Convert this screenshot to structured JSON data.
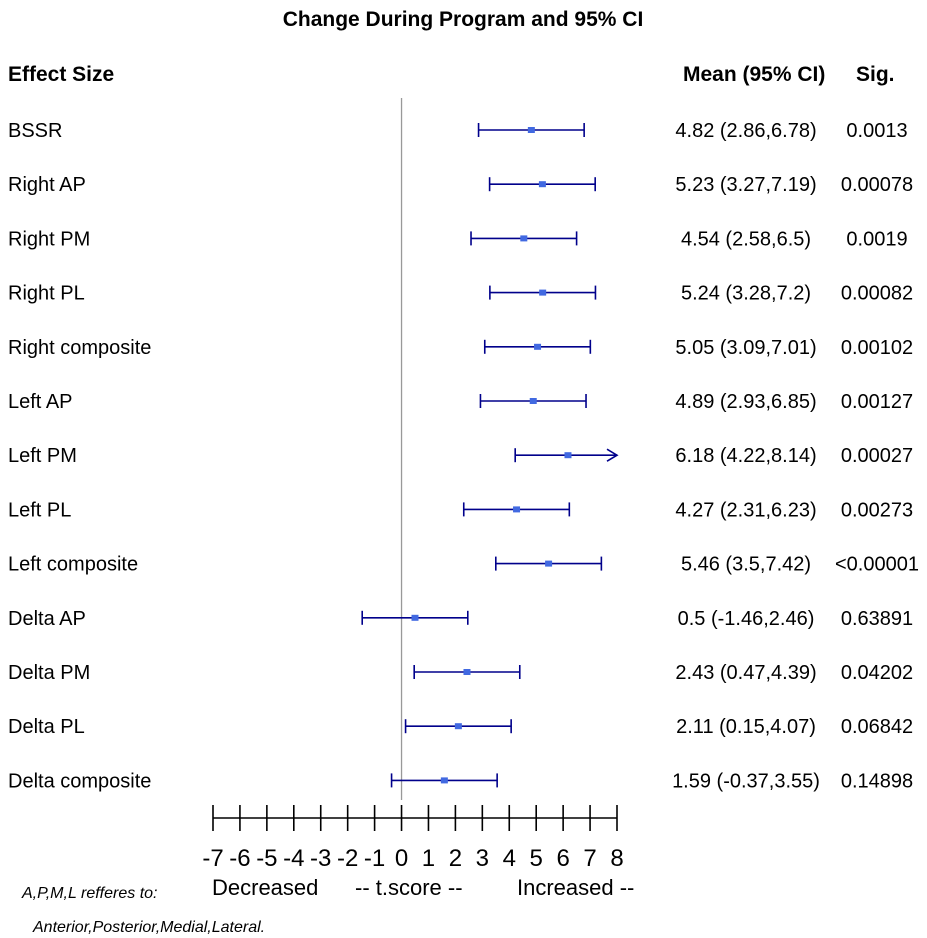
{
  "title": "Change During Program and 95% CI",
  "header": {
    "effect_size": "Effect Size",
    "mean_ci": "Mean (95% CI)",
    "sig": "Sig."
  },
  "axis": {
    "label_left": "Decreased",
    "label_mid": "--  t.score  --",
    "label_right": "Increased  --"
  },
  "footnote": {
    "line1": "A,P,M,L refferes to:",
    "line2": "Anterior,Posterior,Medial,Lateral."
  },
  "colors": {
    "ci": "#00008B",
    "point": "#4169E1",
    "refline": "#999999"
  },
  "chart_data": {
    "type": "forest",
    "title": "Change During Program and 95% CI",
    "xlabel": "Decreased -- t.score -- Increased --",
    "xlim": [
      -7,
      8
    ],
    "xticks": [
      "-7",
      "-6",
      "-5",
      "-4",
      "-3",
      "-2",
      "-1",
      "0",
      "1",
      "2",
      "3",
      "4",
      "5",
      "6",
      "7",
      "8"
    ],
    "reference_line": 0,
    "rows": [
      {
        "label": "BSSR",
        "mean": 4.82,
        "lower": 2.86,
        "upper": 6.78,
        "ci_text": "4.82 (2.86,6.78)",
        "sig": "0.0013"
      },
      {
        "label": "Right AP",
        "mean": 5.23,
        "lower": 3.27,
        "upper": 7.19,
        "ci_text": "5.23 (3.27,7.19)",
        "sig": "0.00078"
      },
      {
        "label": "Right PM",
        "mean": 4.54,
        "lower": 2.58,
        "upper": 6.5,
        "ci_text": "4.54 (2.58,6.5)",
        "sig": "0.0019"
      },
      {
        "label": "Right PL",
        "mean": 5.24,
        "lower": 3.28,
        "upper": 7.2,
        "ci_text": "5.24 (3.28,7.2)",
        "sig": "0.00082"
      },
      {
        "label": "Right composite",
        "mean": 5.05,
        "lower": 3.09,
        "upper": 7.01,
        "ci_text": "5.05 (3.09,7.01)",
        "sig": "0.00102"
      },
      {
        "label": "Left AP",
        "mean": 4.89,
        "lower": 2.93,
        "upper": 6.85,
        "ci_text": "4.89 (2.93,6.85)",
        "sig": "0.00127"
      },
      {
        "label": "Left PM",
        "mean": 6.18,
        "lower": 4.22,
        "upper": 8.14,
        "ci_text": "6.18 (4.22,8.14)",
        "sig": "0.00027"
      },
      {
        "label": "Left PL",
        "mean": 4.27,
        "lower": 2.31,
        "upper": 6.23,
        "ci_text": "4.27 (2.31,6.23)",
        "sig": "0.00273"
      },
      {
        "label": "Left composite",
        "mean": 5.46,
        "lower": 3.5,
        "upper": 7.42,
        "ci_text": "5.46 (3.5,7.42)",
        "sig": "<0.00001"
      },
      {
        "label": "Delta AP",
        "mean": 0.5,
        "lower": -1.46,
        "upper": 2.46,
        "ci_text": "0.5 (-1.46,2.46)",
        "sig": "0.63891"
      },
      {
        "label": "Delta PM",
        "mean": 2.43,
        "lower": 0.47,
        "upper": 4.39,
        "ci_text": "2.43 (0.47,4.39)",
        "sig": "0.04202"
      },
      {
        "label": "Delta PL",
        "mean": 2.11,
        "lower": 0.15,
        "upper": 4.07,
        "ci_text": "2.11 (0.15,4.07)",
        "sig": "0.06842"
      },
      {
        "label": "Delta composite",
        "mean": 1.59,
        "lower": -0.37,
        "upper": 3.55,
        "ci_text": "1.59 (-0.37,3.55)",
        "sig": "0.14898"
      }
    ]
  }
}
